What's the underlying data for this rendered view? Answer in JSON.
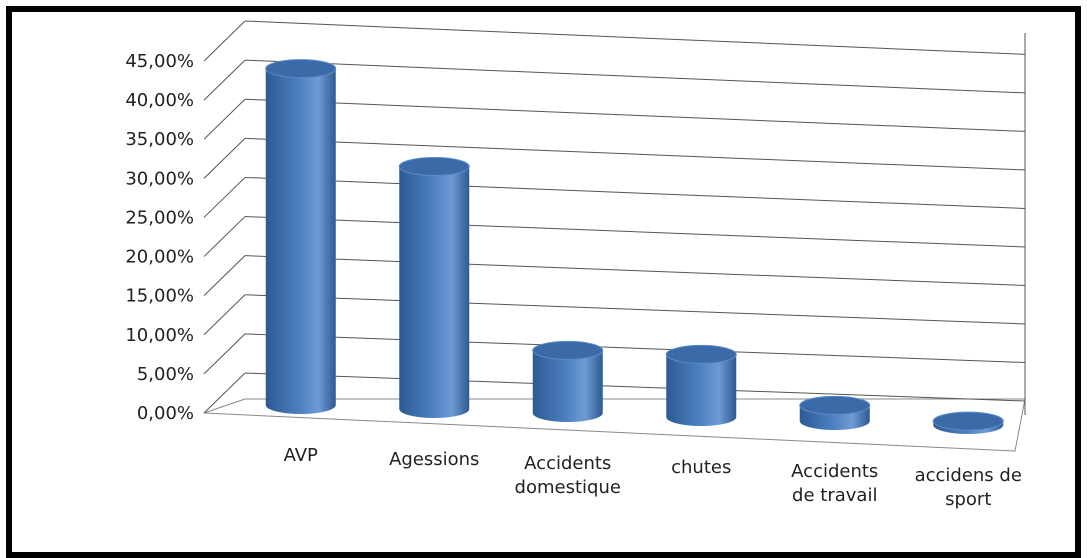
{
  "chart_data": {
    "type": "bar",
    "style": "3d-cylinder",
    "categories": [
      "AVP",
      "Agessions",
      "Accidents domestique",
      "chutes",
      "Accidents de travail",
      "accidens de sport"
    ],
    "category_lines": [
      [
        "AVP"
      ],
      [
        "Agessions"
      ],
      [
        "Accidents",
        "domestique"
      ],
      [
        "chutes"
      ],
      [
        "Accidents",
        "de travail"
      ],
      [
        "accidens de",
        "sport"
      ]
    ],
    "values": [
      43.0,
      31.0,
      8.0,
      8.0,
      2.0,
      0.5
    ],
    "ylim": [
      0,
      45
    ],
    "yticks": [
      "0,00%",
      "5,00%",
      "10,00%",
      "15,00%",
      "20,00%",
      "25,00%",
      "30,00%",
      "35,00%",
      "40,00%",
      "45,00%"
    ],
    "grid": true,
    "legend": "none",
    "colors": {
      "bar_main": "#4a7ebf",
      "bar_top": "#3a6aa8",
      "bar_dark": "#2e5a93",
      "grid": "#555555"
    }
  }
}
